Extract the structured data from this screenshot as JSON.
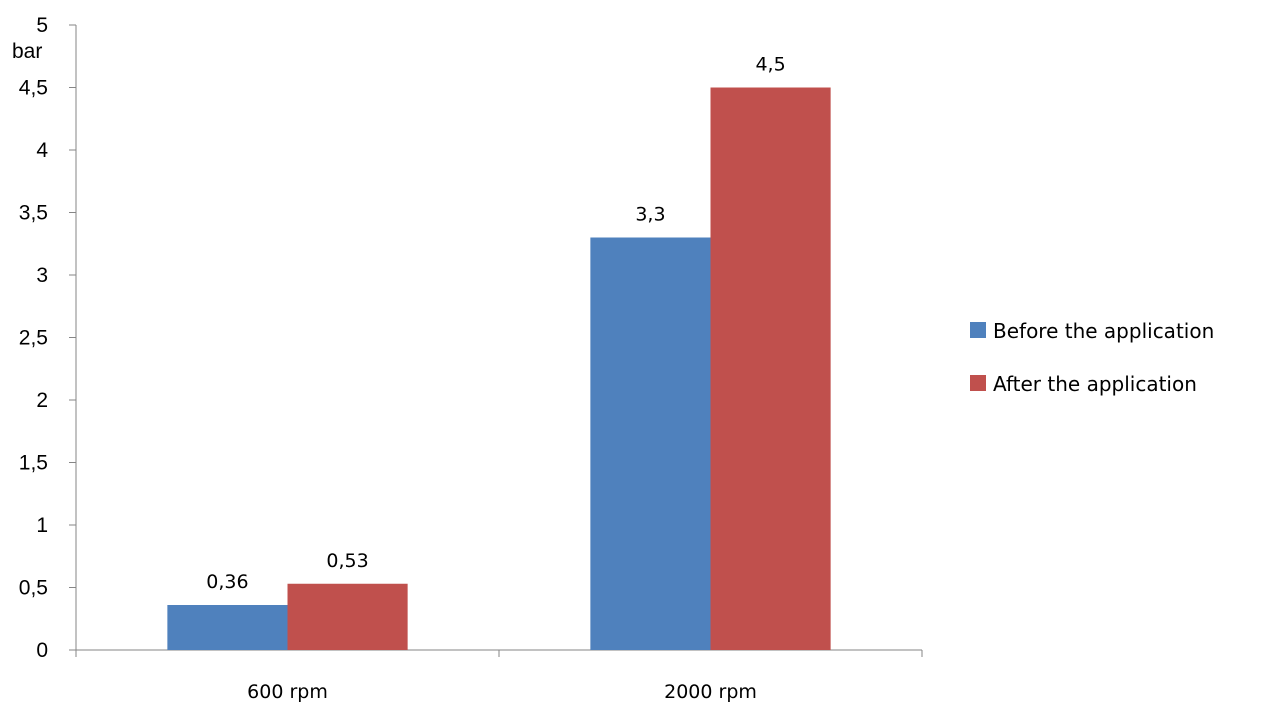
{
  "chart_data": {
    "type": "bar",
    "title": "",
    "xlabel": "",
    "ylabel": "bar",
    "categories": [
      "600 rpm",
      "2000 rpm"
    ],
    "series": [
      {
        "name": "Before the application",
        "values": [
          0.36,
          3.3
        ],
        "labels": [
          "0,36",
          "3,3"
        ],
        "color": "#4F81BD"
      },
      {
        "name": "After the application",
        "values": [
          0.53,
          4.5
        ],
        "labels": [
          "0,53",
          "4,5"
        ],
        "color": "#C0504D"
      }
    ],
    "ylim": [
      0,
      5
    ],
    "yticks": [
      0,
      0.5,
      1,
      1.5,
      2,
      2.5,
      3,
      3.5,
      4,
      4.5,
      5
    ],
    "ytick_labels": [
      "0",
      "0,5",
      "1",
      "1,5",
      "2",
      "2,5",
      "3",
      "3,5",
      "4",
      "4,5",
      "5"
    ],
    "grid": false,
    "legend_position": "right"
  }
}
